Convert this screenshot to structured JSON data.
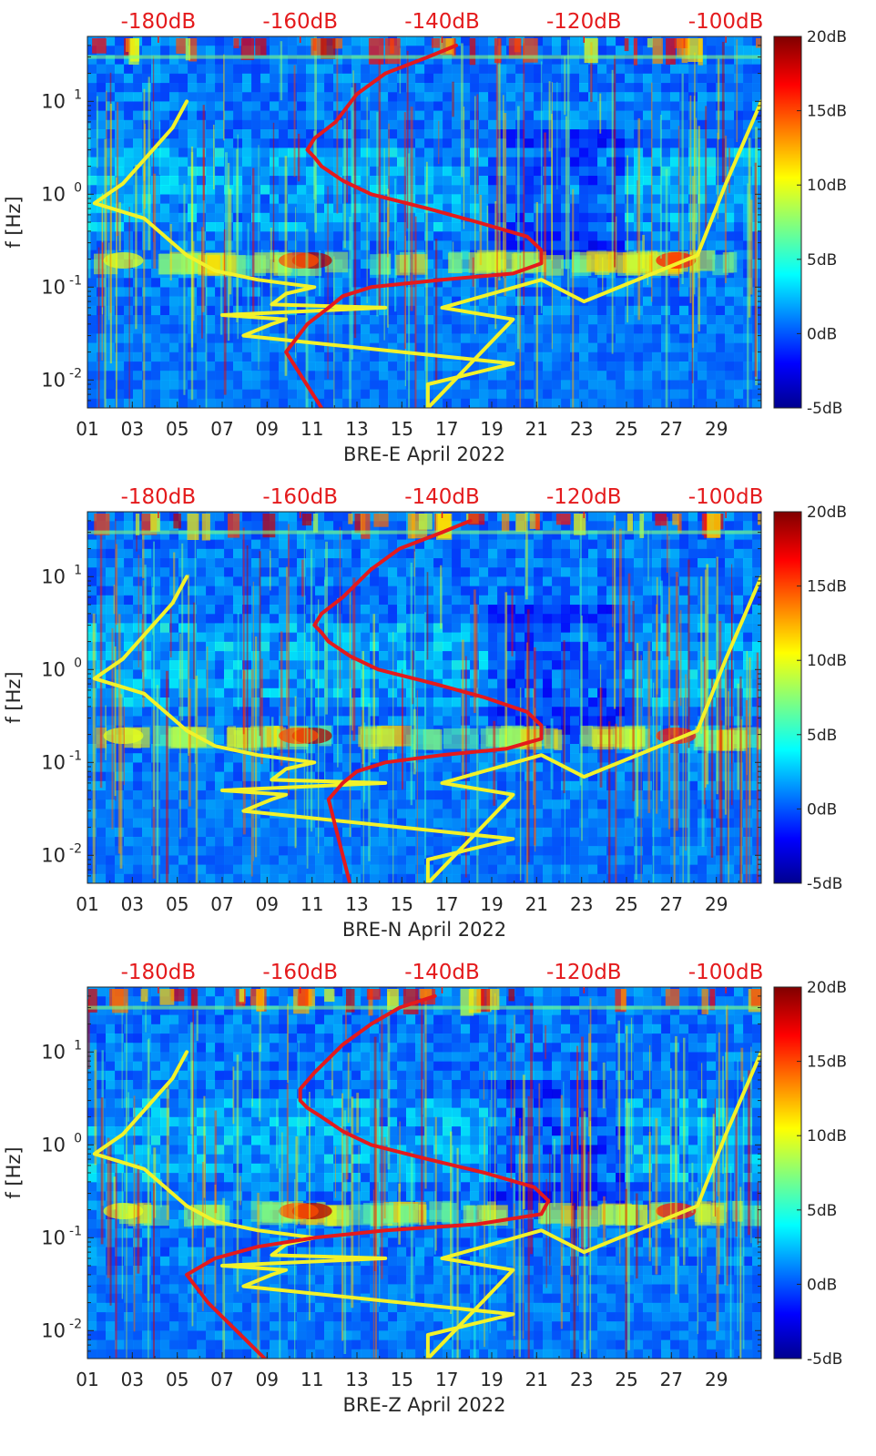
{
  "chart_data": [
    {
      "type": "heatmap",
      "station": "BRE-E",
      "xlabel": "BRE-E April 2022",
      "ylabel": "f [Hz]",
      "x_ticks": [
        "01",
        "03",
        "05",
        "07",
        "09",
        "11",
        "13",
        "15",
        "17",
        "19",
        "21",
        "23",
        "25",
        "27",
        "29"
      ],
      "y_ticks": [
        "10^-2",
        "10^-1",
        "10^0",
        "10^1"
      ],
      "y_tick_base": "10",
      "y_tick_exponents": [
        "-2",
        "-1",
        "0",
        "1"
      ],
      "ylim_hz": [
        0.005,
        50
      ],
      "xlim_days": [
        1,
        31
      ],
      "top_axis_ticks": [
        "-180dB",
        "-160dB",
        "-140dB",
        "-120dB",
        "-100dB"
      ],
      "top_axis_range_db": [
        -190,
        -95
      ],
      "colorbar": {
        "ticks": [
          "20dB",
          "15dB",
          "10dB",
          "5dB",
          "0dB",
          "-5dB"
        ],
        "range_db": [
          -5,
          20
        ]
      },
      "high_noise_band_hz": [
        0.15,
        0.25
      ],
      "series": [
        {
          "name": "yellow noise model",
          "color": "#f2f22a",
          "db": [
            -176,
            -178,
            -185,
            -189,
            -182,
            -176,
            -172,
            -166,
            -158,
            -162,
            -164,
            -148,
            -171,
            -162,
            -164,
            -168,
            -130,
            -142,
            -142,
            -130,
            -140,
            -126,
            -120,
            -104,
            -100,
            -95
          ],
          "freq_hz": [
            10,
            5.2,
            1.3,
            0.8,
            0.55,
            0.22,
            0.15,
            0.12,
            0.1,
            0.085,
            0.065,
            0.06,
            0.05,
            0.045,
            0.04,
            0.03,
            0.015,
            0.009,
            0.005,
            0.045,
            0.06,
            0.12,
            0.07,
            0.22,
            1.3,
            10
          ]
        },
        {
          "name": "red observed PSD",
          "color": "#e41a1c",
          "db": [
            -138,
            -142,
            -148,
            -152,
            -155,
            -158,
            -159,
            -158,
            -157,
            -154,
            -150,
            -142,
            -135,
            -128,
            -126,
            -126,
            -130,
            -140,
            -150,
            -154,
            -156,
            -159,
            -162,
            -157
          ],
          "freq_hz": [
            40,
            30,
            20,
            12,
            6,
            4,
            3,
            2.5,
            2,
            1.4,
            1,
            0.7,
            0.5,
            0.35,
            0.25,
            0.18,
            0.14,
            0.12,
            0.1,
            0.08,
            0.06,
            0.04,
            0.02,
            0.005
          ]
        }
      ]
    },
    {
      "type": "heatmap",
      "station": "BRE-N",
      "xlabel": "BRE-N April 2022",
      "ylabel": "f [Hz]",
      "x_ticks": [
        "01",
        "03",
        "05",
        "07",
        "09",
        "11",
        "13",
        "15",
        "17",
        "19",
        "21",
        "23",
        "25",
        "27",
        "29"
      ],
      "y_ticks": [
        "10^-2",
        "10^-1",
        "10^0",
        "10^1"
      ],
      "y_tick_base": "10",
      "y_tick_exponents": [
        "-2",
        "-1",
        "0",
        "1"
      ],
      "ylim_hz": [
        0.005,
        50
      ],
      "xlim_days": [
        1,
        31
      ],
      "top_axis_ticks": [
        "-180dB",
        "-160dB",
        "-140dB",
        "-120dB",
        "-100dB"
      ],
      "top_axis_range_db": [
        -190,
        -95
      ],
      "colorbar": {
        "ticks": [
          "20dB",
          "15dB",
          "10dB",
          "5dB",
          "0dB",
          "-5dB"
        ],
        "range_db": [
          -5,
          20
        ]
      },
      "high_noise_band_hz": [
        0.15,
        0.25
      ],
      "series": [
        {
          "name": "yellow noise model",
          "color": "#f2f22a",
          "db": [
            -176,
            -178,
            -185,
            -189,
            -182,
            -176,
            -172,
            -166,
            -158,
            -162,
            -164,
            -148,
            -171,
            -162,
            -164,
            -168,
            -130,
            -142,
            -142,
            -130,
            -140,
            -126,
            -120,
            -104,
            -100,
            -95
          ],
          "freq_hz": [
            10,
            5.2,
            1.3,
            0.8,
            0.55,
            0.22,
            0.15,
            0.12,
            0.1,
            0.085,
            0.065,
            0.06,
            0.05,
            0.045,
            0.04,
            0.03,
            0.015,
            0.009,
            0.005,
            0.045,
            0.06,
            0.12,
            0.07,
            0.22,
            1.3,
            10
          ]
        },
        {
          "name": "red observed PSD",
          "color": "#e41a1c",
          "db": [
            -136,
            -140,
            -146,
            -150,
            -154,
            -157,
            -158,
            -157,
            -156,
            -153,
            -149,
            -141,
            -134,
            -128,
            -126,
            -126,
            -131,
            -140,
            -148,
            -152,
            -154,
            -156,
            -155,
            -153
          ],
          "freq_hz": [
            40,
            30,
            20,
            12,
            6,
            4,
            3,
            2.5,
            2,
            1.4,
            1,
            0.7,
            0.5,
            0.35,
            0.25,
            0.18,
            0.14,
            0.12,
            0.1,
            0.08,
            0.06,
            0.04,
            0.02,
            0.005
          ]
        }
      ]
    },
    {
      "type": "heatmap",
      "station": "BRE-Z",
      "xlabel": "BRE-Z April 2022",
      "ylabel": "f [Hz]",
      "x_ticks": [
        "01",
        "03",
        "05",
        "07",
        "09",
        "11",
        "13",
        "15",
        "17",
        "19",
        "21",
        "23",
        "25",
        "27",
        "29"
      ],
      "y_ticks": [
        "10^-2",
        "10^-1",
        "10^0",
        "10^1"
      ],
      "y_tick_base": "10",
      "y_tick_exponents": [
        "-2",
        "-1",
        "0",
        "1"
      ],
      "ylim_hz": [
        0.005,
        50
      ],
      "xlim_days": [
        1,
        31
      ],
      "top_axis_ticks": [
        "-180dB",
        "-160dB",
        "-140dB",
        "-120dB",
        "-100dB"
      ],
      "top_axis_range_db": [
        -190,
        -95
      ],
      "colorbar": {
        "ticks": [
          "20dB",
          "15dB",
          "10dB",
          "5dB",
          "0dB",
          "-5dB"
        ],
        "range_db": [
          -5,
          20
        ]
      },
      "high_noise_band_hz": [
        0.15,
        0.25
      ],
      "series": [
        {
          "name": "yellow noise model",
          "color": "#f2f22a",
          "db": [
            -176,
            -178,
            -185,
            -189,
            -182,
            -176,
            -172,
            -166,
            -158,
            -162,
            -164,
            -148,
            -171,
            -162,
            -164,
            -168,
            -130,
            -142,
            -142,
            -130,
            -140,
            -126,
            -120,
            -104,
            -100,
            -95
          ],
          "freq_hz": [
            10,
            5.2,
            1.3,
            0.8,
            0.55,
            0.22,
            0.15,
            0.12,
            0.1,
            0.085,
            0.065,
            0.06,
            0.05,
            0.045,
            0.04,
            0.03,
            0.015,
            0.009,
            0.005,
            0.045,
            0.06,
            0.12,
            0.07,
            0.22,
            1.3,
            10
          ]
        },
        {
          "name": "red observed PSD",
          "color": "#e41a1c",
          "db": [
            -141,
            -146,
            -150,
            -154,
            -158,
            -160,
            -160,
            -159,
            -157,
            -154,
            -150,
            -142,
            -134,
            -127,
            -125,
            -126,
            -135,
            -148,
            -158,
            -166,
            -172,
            -176,
            -173,
            -165
          ],
          "freq_hz": [
            40,
            30,
            20,
            12,
            6,
            4,
            3,
            2.5,
            2,
            1.4,
            1,
            0.7,
            0.5,
            0.35,
            0.25,
            0.18,
            0.14,
            0.12,
            0.1,
            0.08,
            0.06,
            0.04,
            0.02,
            0.005
          ]
        }
      ]
    }
  ]
}
